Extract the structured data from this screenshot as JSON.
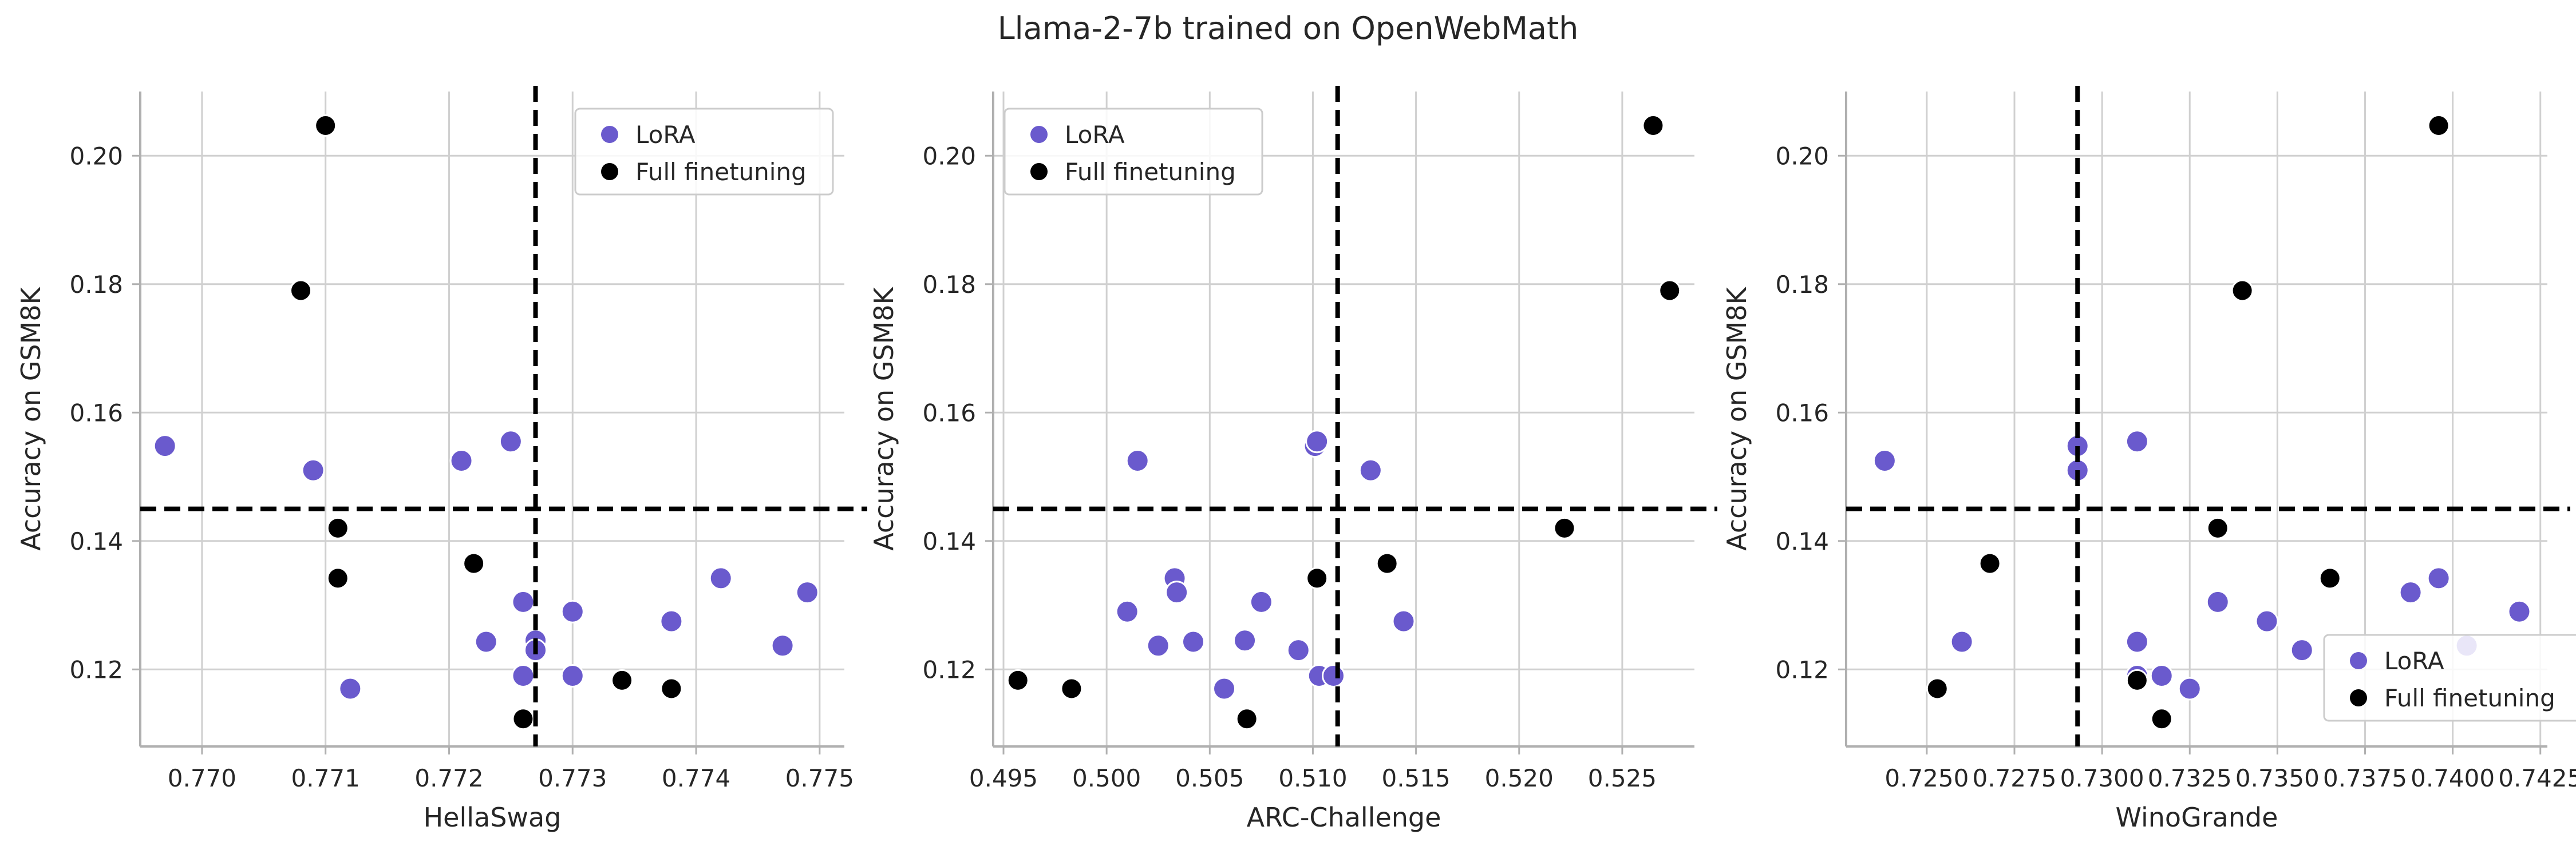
{
  "figure": {
    "title": "Llama-2-7b trained on OpenWebMath"
  },
  "colors": {
    "lora": "#6a5acd",
    "full": "#000000",
    "grid": "#d0d0d0",
    "spine": "#b0b0b0",
    "reference_line": "#000000"
  },
  "chart_data": [
    {
      "type": "scatter",
      "title": "",
      "xlabel": "HellaSwag",
      "ylabel": "Accuracy on GSM8K",
      "xlim": [
        0.7755,
        0.7752
      ],
      "ylim": [
        0.108,
        0.21
      ],
      "xticks": [
        "0.770",
        "0.771",
        "0.772",
        "0.773",
        "0.774",
        "0.775"
      ],
      "yticks": [
        "0.12",
        "0.14",
        "0.16",
        "0.18",
        "0.20"
      ],
      "reference_lines": {
        "x": 0.7727,
        "y": 0.145
      },
      "grid": true,
      "legend": {
        "placement": "top-right",
        "entries": [
          "LoRA",
          "Full finetuning"
        ]
      },
      "series": [
        {
          "name": "LoRA",
          "color": "#6a5acd",
          "points": [
            [
              0.7697,
              0.1548
            ],
            [
              0.7709,
              0.151
            ],
            [
              0.7712,
              0.117
            ],
            [
              0.7721,
              0.1525
            ],
            [
              0.7725,
              0.1555
            ],
            [
              0.7723,
              0.1243
            ],
            [
              0.7726,
              0.1305
            ],
            [
              0.7726,
              0.119
            ],
            [
              0.7727,
              0.1245
            ],
            [
              0.7727,
              0.123
            ],
            [
              0.773,
              0.129
            ],
            [
              0.773,
              0.119
            ],
            [
              0.7738,
              0.1275
            ],
            [
              0.7742,
              0.1342
            ],
            [
              0.7747,
              0.1237
            ],
            [
              0.7749,
              0.132
            ]
          ]
        },
        {
          "name": "Full finetuning",
          "color": "#000000",
          "points": [
            [
              0.771,
              0.2047
            ],
            [
              0.7708,
              0.179
            ],
            [
              0.7711,
              0.142
            ],
            [
              0.7711,
              0.1342
            ],
            [
              0.7722,
              0.1365
            ],
            [
              0.7726,
              0.1123
            ],
            [
              0.7734,
              0.1183
            ],
            [
              0.7738,
              0.117
            ]
          ]
        }
      ]
    },
    {
      "type": "scatter",
      "title": "",
      "xlabel": "ARC-Challenge",
      "ylabel": "Accuracy on GSM8K",
      "xlim": [
        0.4945,
        0.5285
      ],
      "ylim": [
        0.108,
        0.21
      ],
      "xticks": [
        "0.495",
        "0.500",
        "0.505",
        "0.510",
        "0.515",
        "0.520",
        "0.525"
      ],
      "yticks": [
        "0.12",
        "0.14",
        "0.16",
        "0.18",
        "0.20"
      ],
      "reference_lines": {
        "x": 0.5112,
        "y": 0.145
      },
      "grid": true,
      "legend": {
        "placement": "top-left",
        "entries": [
          "LoRA",
          "Full finetuning"
        ]
      },
      "series": [
        {
          "name": "LoRA",
          "color": "#6a5acd",
          "points": [
            [
              0.5015,
              0.1525
            ],
            [
              0.501,
              0.129
            ],
            [
              0.5025,
              0.1237
            ],
            [
              0.5033,
              0.1342
            ],
            [
              0.5034,
              0.132
            ],
            [
              0.5042,
              0.1243
            ],
            [
              0.5057,
              0.117
            ],
            [
              0.5067,
              0.1245
            ],
            [
              0.5075,
              0.1305
            ],
            [
              0.5093,
              0.123
            ],
            [
              0.5101,
              0.1548
            ],
            [
              0.5102,
              0.1555
            ],
            [
              0.5103,
              0.119
            ],
            [
              0.511,
              0.119
            ],
            [
              0.5128,
              0.151
            ],
            [
              0.5144,
              0.1275
            ]
          ]
        },
        {
          "name": "Full finetuning",
          "color": "#000000",
          "points": [
            [
              0.4957,
              0.1183
            ],
            [
              0.4983,
              0.117
            ],
            [
              0.5068,
              0.1123
            ],
            [
              0.5102,
              0.1342
            ],
            [
              0.5136,
              0.1365
            ],
            [
              0.5222,
              0.142
            ],
            [
              0.5265,
              0.2047
            ],
            [
              0.5273,
              0.179
            ]
          ]
        }
      ]
    },
    {
      "type": "scatter",
      "title": "",
      "xlabel": "WinoGrande",
      "ylabel": "Accuracy on GSM8K",
      "xlim": [
        0.7227,
        0.7427
      ],
      "ylim": [
        0.108,
        0.21
      ],
      "xticks": [
        "0.7250",
        "0.7275",
        "0.7300",
        "0.7325",
        "0.7350",
        "0.7375",
        "0.7400",
        "0.7425"
      ],
      "yticks": [
        "0.12",
        "0.14",
        "0.16",
        "0.18",
        "0.20"
      ],
      "reference_lines": {
        "x": 0.7293,
        "y": 0.145
      },
      "grid": true,
      "legend": {
        "placement": "bottom-right",
        "entries": [
          "LoRA",
          "Full finetuning"
        ]
      },
      "series": [
        {
          "name": "LoRA",
          "color": "#6a5acd",
          "points": [
            [
              0.7238,
              0.1525
            ],
            [
              0.726,
              0.1243
            ],
            [
              0.7293,
              0.1548
            ],
            [
              0.7293,
              0.151
            ],
            [
              0.731,
              0.1555
            ],
            [
              0.731,
              0.1243
            ],
            [
              0.731,
              0.119
            ],
            [
              0.7317,
              0.119
            ],
            [
              0.7325,
              0.117
            ],
            [
              0.7333,
              0.1305
            ],
            [
              0.7347,
              0.1275
            ],
            [
              0.7357,
              0.123
            ],
            [
              0.7388,
              0.132
            ],
            [
              0.7396,
              0.1342
            ],
            [
              0.7404,
              0.1237
            ],
            [
              0.7419,
              0.129
            ]
          ]
        },
        {
          "name": "Full finetuning",
          "color": "#000000",
          "points": [
            [
              0.7253,
              0.117
            ],
            [
              0.7268,
              0.1365
            ],
            [
              0.731,
              0.1183
            ],
            [
              0.7317,
              0.1123
            ],
            [
              0.7333,
              0.142
            ],
            [
              0.734,
              0.179
            ],
            [
              0.7365,
              0.1342
            ],
            [
              0.7396,
              0.2047
            ]
          ]
        }
      ]
    }
  ]
}
